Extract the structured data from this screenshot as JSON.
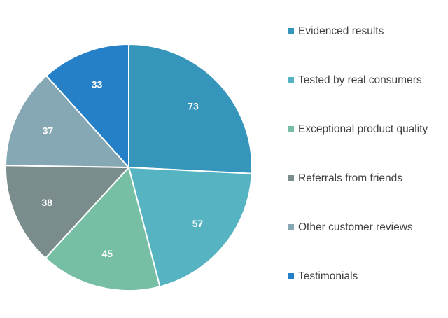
{
  "chart_data": {
    "type": "pie",
    "title": "",
    "categories": [
      "Evidenced results",
      "Tested by real consumers",
      "Exceptional product quality",
      "Referrals from friends",
      "Other customer reviews",
      "Testimonials"
    ],
    "values": [
      73,
      57,
      45,
      38,
      37,
      33
    ],
    "colors": [
      "#3595BB",
      "#56B3C2",
      "#77BFA4",
      "#7A8D8C",
      "#86A8B4",
      "#2580C8"
    ],
    "start_angle_deg": 0,
    "direction": "clockwise",
    "legend_position": "right",
    "data_labels": "inside"
  }
}
